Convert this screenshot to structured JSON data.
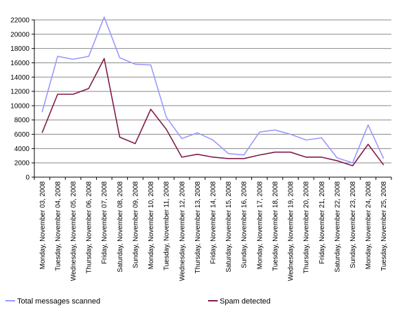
{
  "chart_data": {
    "type": "line",
    "categories": [
      "Monday, November 03, 2008",
      "Tuesday, November 04, 2008",
      "Wednesday, November 05, 2008",
      "Thursday, November 06, 2008",
      "Friday, November 07, 2008",
      "Saturday, November 08, 2008",
      "Sunday, November 09, 2008",
      "Monday, November 10, 2008",
      "Tuesday, November 11, 2008",
      "Wednesday, November 12, 2008",
      "Thursday, November 13, 2008",
      "Friday, November 14, 2008",
      "Saturday, November 15, 2008",
      "Sunday, November 16, 2008",
      "Monday, November 17, 2008",
      "Tuesday, November 18, 2008",
      "Wednesday, November 19, 2008",
      "Thursday, November 20, 2008",
      "Friday, November 21, 2008",
      "Saturday, November 22, 2008",
      "Sunday, November 23, 2008",
      "Monday, November 24, 2008",
      "Tuesday, November 25, 2008"
    ],
    "series": [
      {
        "name": "Total messages scanned",
        "color": "#9999ff",
        "values": [
          9100,
          16900,
          16500,
          16900,
          22400,
          16700,
          15800,
          15700,
          8400,
          5400,
          6200,
          5200,
          3300,
          3100,
          6300,
          6600,
          6000,
          5200,
          5500,
          2700,
          2000,
          7300,
          2600
        ]
      },
      {
        "name": "Spam detected",
        "color": "#7f1a4a",
        "values": [
          6200,
          11600,
          11600,
          12400,
          16600,
          5600,
          4700,
          9500,
          6700,
          2800,
          3200,
          2800,
          2600,
          2600,
          3100,
          3500,
          3500,
          2800,
          2800,
          2300,
          1600,
          4600,
          1700
        ]
      }
    ],
    "ylim": [
      0,
      22000
    ],
    "yticks": [
      0,
      2000,
      4000,
      6000,
      8000,
      10000,
      12000,
      14000,
      16000,
      18000,
      20000,
      22000
    ],
    "grid": true,
    "grid_color": "#888888",
    "legend_position": "bottom",
    "title": "",
    "xlabel": "",
    "ylabel": ""
  }
}
